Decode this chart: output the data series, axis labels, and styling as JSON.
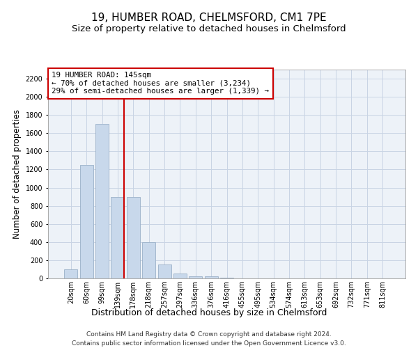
{
  "title1": "19, HUMBER ROAD, CHELMSFORD, CM1 7PE",
  "title2": "Size of property relative to detached houses in Chelmsford",
  "xlabel": "Distribution of detached houses by size in Chelmsford",
  "ylabel": "Number of detached properties",
  "categories": [
    "20sqm",
    "60sqm",
    "99sqm",
    "139sqm",
    "178sqm",
    "218sqm",
    "257sqm",
    "297sqm",
    "336sqm",
    "376sqm",
    "416sqm",
    "455sqm",
    "495sqm",
    "534sqm",
    "574sqm",
    "613sqm",
    "653sqm",
    "692sqm",
    "732sqm",
    "771sqm",
    "811sqm"
  ],
  "values": [
    100,
    1250,
    1700,
    900,
    900,
    400,
    150,
    50,
    25,
    25,
    5,
    3,
    2,
    1,
    1,
    0,
    0,
    0,
    0,
    0,
    0
  ],
  "bar_color": "#c8d8eb",
  "bar_edge_color": "#9ab0c8",
  "vline_x": 3.42,
  "vline_color": "#cc0000",
  "annotation_line1": "19 HUMBER ROAD: 145sqm",
  "annotation_line2": "← 70% of detached houses are smaller (3,234)",
  "annotation_line3": "29% of semi-detached houses are larger (1,339) →",
  "annotation_box_color": "#cc0000",
  "ylim": [
    0,
    2300
  ],
  "yticks": [
    0,
    200,
    400,
    600,
    800,
    1000,
    1200,
    1400,
    1600,
    1800,
    2000,
    2200
  ],
  "grid_color": "#c8d4e4",
  "bg_color": "#edf2f8",
  "footer1": "Contains HM Land Registry data © Crown copyright and database right 2024.",
  "footer2": "Contains public sector information licensed under the Open Government Licence v3.0.",
  "title1_fontsize": 11,
  "title2_fontsize": 9.5,
  "xlabel_fontsize": 9,
  "ylabel_fontsize": 8.5,
  "tick_fontsize": 7,
  "annotation_fontsize": 7.8,
  "footer_fontsize": 6.5
}
